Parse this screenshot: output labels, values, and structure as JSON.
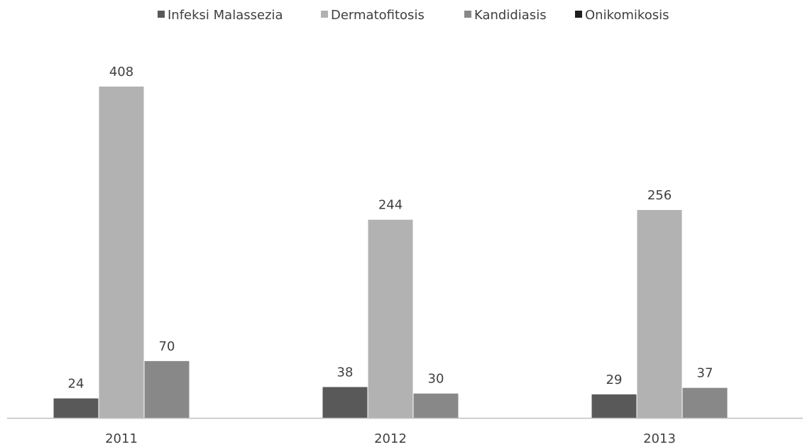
{
  "chart_data": {
    "type": "bar",
    "categories": [
      "2011",
      "2012",
      "2013"
    ],
    "series": [
      {
        "name": "Infeksi Malassezia",
        "values": [
          24,
          38,
          29
        ],
        "color": "#595959"
      },
      {
        "name": "Dermatofitosis",
        "values": [
          408,
          244,
          256
        ],
        "color": "#b2b2b2"
      },
      {
        "name": "Kandidiasis",
        "values": [
          70,
          30,
          37
        ],
        "color": "#888888"
      },
      {
        "name": "Onikomikosis",
        "values": [
          null,
          null,
          null
        ],
        "color": "#1e1e1e"
      }
    ],
    "title": "",
    "xlabel": "",
    "ylabel": "",
    "ylim": [
      0,
      408
    ],
    "grid": false,
    "legend_position": "top-center",
    "axis_color": "#bfbfbf"
  }
}
